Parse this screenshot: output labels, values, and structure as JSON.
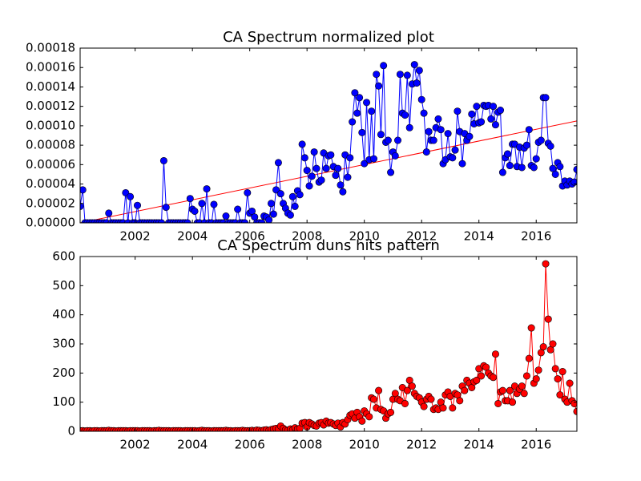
{
  "chart_data": [
    {
      "type": "line",
      "title": "CA Spectrum normalized plot",
      "x": [
        2000.08,
        2000.17,
        2000.25,
        2000.33,
        2000.42,
        2000.5,
        2000.58,
        2000.67,
        2000.75,
        2000.83,
        2000.92,
        2001,
        2001.08,
        2001.17,
        2001.25,
        2001.33,
        2001.42,
        2001.5,
        2001.58,
        2001.67,
        2001.75,
        2001.83,
        2001.92,
        2002,
        2002.08,
        2002.17,
        2002.25,
        2002.33,
        2002.42,
        2002.5,
        2002.58,
        2002.67,
        2002.75,
        2002.83,
        2002.92,
        2003,
        2003.08,
        2003.17,
        2003.25,
        2003.33,
        2003.42,
        2003.5,
        2003.58,
        2003.67,
        2003.75,
        2003.83,
        2003.92,
        2004,
        2004.08,
        2004.17,
        2004.25,
        2004.33,
        2004.42,
        2004.5,
        2004.58,
        2004.67,
        2004.75,
        2004.83,
        2004.92,
        2005,
        2005.08,
        2005.17,
        2005.25,
        2005.33,
        2005.42,
        2005.5,
        2005.58,
        2005.67,
        2005.75,
        2005.83,
        2005.92,
        2006,
        2006.08,
        2006.17,
        2006.25,
        2006.33,
        2006.42,
        2006.5,
        2006.58,
        2006.67,
        2006.75,
        2006.83,
        2006.92,
        2007,
        2007.08,
        2007.17,
        2007.25,
        2007.33,
        2007.42,
        2007.5,
        2007.58,
        2007.67,
        2007.75,
        2007.83,
        2007.92,
        2008,
        2008.08,
        2008.17,
        2008.25,
        2008.33,
        2008.42,
        2008.5,
        2008.58,
        2008.67,
        2008.75,
        2008.83,
        2008.92,
        2009,
        2009.08,
        2009.17,
        2009.25,
        2009.33,
        2009.42,
        2009.5,
        2009.58,
        2009.67,
        2009.75,
        2009.83,
        2009.92,
        2010,
        2010.08,
        2010.17,
        2010.25,
        2010.33,
        2010.42,
        2010.5,
        2010.58,
        2010.67,
        2010.75,
        2010.83,
        2010.92,
        2011,
        2011.08,
        2011.17,
        2011.25,
        2011.33,
        2011.42,
        2011.5,
        2011.58,
        2011.67,
        2011.75,
        2011.83,
        2011.92,
        2012,
        2012.08,
        2012.17,
        2012.25,
        2012.33,
        2012.42,
        2012.5,
        2012.58,
        2012.67,
        2012.75,
        2012.83,
        2012.92,
        2013,
        2013.08,
        2013.17,
        2013.25,
        2013.33,
        2013.42,
        2013.5,
        2013.58,
        2013.67,
        2013.75,
        2013.83,
        2013.92,
        2014,
        2014.08,
        2014.17,
        2014.25,
        2014.33,
        2014.42,
        2014.5,
        2014.58,
        2014.67,
        2014.75,
        2014.83,
        2014.92,
        2015,
        2015.08,
        2015.17,
        2015.25,
        2015.33,
        2015.42,
        2015.5,
        2015.58,
        2015.67,
        2015.75,
        2015.83,
        2015.92,
        2016,
        2016.08,
        2016.17,
        2016.25,
        2016.33,
        2016.42,
        2016.5,
        2016.58,
        2016.67,
        2016.75,
        2016.83,
        2016.92,
        2017,
        2017.08,
        2017.17,
        2017.25,
        2017.33,
        2017.42
      ],
      "series": [
        {
          "color": "#0000ff",
          "values": [
            1.7e-05,
            3.4e-05,
            0,
            0,
            0,
            0,
            0,
            0,
            0,
            0,
            0,
            0,
            1e-05,
            0,
            0,
            0,
            0,
            0,
            0,
            3.1e-05,
            0,
            2.7e-05,
            0,
            0,
            1.8e-05,
            0,
            0,
            0,
            0,
            0,
            0,
            0,
            0,
            0,
            0,
            6.4e-05,
            1.6e-05,
            0,
            0,
            0,
            0,
            0,
            0,
            0,
            0,
            0,
            2.5e-05,
            1.4e-05,
            1.2e-05,
            0,
            0,
            2e-05,
            0,
            3.5e-05,
            0,
            0,
            1.9e-05,
            0,
            0,
            0,
            0,
            7e-06,
            0,
            0,
            0,
            0,
            1.4e-05,
            0,
            0,
            0,
            3.1e-05,
            1e-05,
            1.2e-05,
            6e-06,
            0,
            0,
            0,
            7e-06,
            6e-06,
            3e-06,
            2e-05,
            9e-06,
            3.4e-05,
            6.2e-05,
            3e-05,
            2e-05,
            1.5e-05,
            1e-05,
            8e-06,
            2.7e-05,
            1.7e-05,
            3.3e-05,
            2.9e-05,
            8.1e-05,
            6.7e-05,
            5.4e-05,
            3.8e-05,
            4.8e-05,
            7.3e-05,
            5.6e-05,
            4.2e-05,
            4.4e-05,
            7.2e-05,
            5.6e-05,
            6.9e-05,
            7e-05,
            5.8e-05,
            4.9e-05,
            5.6e-05,
            3.9e-05,
            3.2e-05,
            7e-05,
            4.7e-05,
            6.7e-05,
            0.000104,
            0.000134,
            0.000113,
            0.000129,
            9.3e-05,
            6.1e-05,
            0.000124,
            6.5e-05,
            0.000115,
            6.6e-05,
            0.000153,
            0.000141,
            9.1e-05,
            0.000162,
            8.3e-05,
            8.5e-05,
            5.2e-05,
            7.3e-05,
            6.9e-05,
            8.5e-05,
            0.000153,
            0.000113,
            0.000111,
            0.000152,
            9.8e-05,
            0.000143,
            0.000163,
            0.000144,
            0.000157,
            0.000127,
            0.000113,
            7.3e-05,
            9.4e-05,
            8.5e-05,
            8.5e-05,
            9.8e-05,
            0.000107,
            9.6e-05,
            6.1e-05,
            6.5e-05,
            9.2e-05,
            6.8e-05,
            6.7e-05,
            7.5e-05,
            0.000115,
            9.4e-05,
            6.1e-05,
            9.2e-05,
            8.5e-05,
            8.9e-05,
            0.000112,
            0.000102,
            0.00012,
            0.000103,
            0.000104,
            0.000121,
            0.00012,
            0.000121,
            0.000107,
            0.00012,
            0.000101,
            0.000114,
            0.000116,
            5.2e-05,
            6.7e-05,
            7.1e-05,
            5.9e-05,
            8.1e-05,
            8.1e-05,
            5.8e-05,
            7.8e-05,
            5.7e-05,
            7.7e-05,
            8e-05,
            9.6e-05,
            5.9e-05,
            5.7e-05,
            6.6e-05,
            8.3e-05,
            8.5e-05,
            0.000129,
            0.000129,
            8.2e-05,
            7.9e-05,
            5.6e-05,
            5e-05,
            6.2e-05,
            5.8e-05,
            3.8e-05,
            4.3e-05,
            3.9e-05,
            4.3e-05,
            4e-05,
            4.2e-05,
            5.5e-05
          ]
        }
      ],
      "trend": {
        "x": [
          2000.08,
          2017.42
        ],
        "values": [
          0,
          0.000105
        ],
        "color": "#ff0000"
      },
      "xlim": [
        2000.08,
        2017.42
      ],
      "ylim": [
        0,
        0.00018
      ],
      "xticks": [
        2002,
        2004,
        2006,
        2008,
        2010,
        2012,
        2014,
        2016
      ],
      "yticks": [
        {
          "value": 0,
          "label": "0.00000"
        },
        {
          "value": 2e-05,
          "label": "0.00002"
        },
        {
          "value": 4e-05,
          "label": "0.00004"
        },
        {
          "value": 6e-05,
          "label": "0.00006"
        },
        {
          "value": 8e-05,
          "label": "0.00008"
        },
        {
          "value": 0.0001,
          "label": "0.00010"
        },
        {
          "value": 0.00012,
          "label": "0.00012"
        },
        {
          "value": 0.00014,
          "label": "0.00014"
        },
        {
          "value": 0.00016,
          "label": "0.00016"
        },
        {
          "value": 0.00018,
          "label": "0.00018"
        }
      ]
    },
    {
      "type": "line",
      "title": "CA Spectrum duns hits pattern",
      "x": [
        2000.08,
        2000.17,
        2000.25,
        2000.33,
        2000.42,
        2000.5,
        2000.58,
        2000.67,
        2000.75,
        2000.83,
        2000.92,
        2001,
        2001.08,
        2001.17,
        2001.25,
        2001.33,
        2001.42,
        2001.5,
        2001.58,
        2001.67,
        2001.75,
        2001.83,
        2001.92,
        2002,
        2002.08,
        2002.17,
        2002.25,
        2002.33,
        2002.42,
        2002.5,
        2002.58,
        2002.67,
        2002.75,
        2002.83,
        2002.92,
        2003,
        2003.08,
        2003.17,
        2003.25,
        2003.33,
        2003.42,
        2003.5,
        2003.58,
        2003.67,
        2003.75,
        2003.83,
        2003.92,
        2004,
        2004.08,
        2004.17,
        2004.25,
        2004.33,
        2004.42,
        2004.5,
        2004.58,
        2004.67,
        2004.75,
        2004.83,
        2004.92,
        2005,
        2005.08,
        2005.17,
        2005.25,
        2005.33,
        2005.42,
        2005.5,
        2005.58,
        2005.67,
        2005.75,
        2005.83,
        2005.92,
        2006,
        2006.08,
        2006.17,
        2006.25,
        2006.33,
        2006.42,
        2006.5,
        2006.58,
        2006.67,
        2006.75,
        2006.83,
        2006.92,
        2007,
        2007.08,
        2007.17,
        2007.25,
        2007.33,
        2007.42,
        2007.5,
        2007.58,
        2007.67,
        2007.75,
        2007.83,
        2007.92,
        2008,
        2008.08,
        2008.17,
        2008.25,
        2008.33,
        2008.42,
        2008.5,
        2008.58,
        2008.67,
        2008.75,
        2008.83,
        2008.92,
        2009,
        2009.08,
        2009.17,
        2009.25,
        2009.33,
        2009.42,
        2009.5,
        2009.58,
        2009.67,
        2009.75,
        2009.83,
        2009.92,
        2010,
        2010.08,
        2010.17,
        2010.25,
        2010.33,
        2010.42,
        2010.5,
        2010.58,
        2010.67,
        2010.75,
        2010.83,
        2010.92,
        2011,
        2011.08,
        2011.17,
        2011.25,
        2011.33,
        2011.42,
        2011.5,
        2011.58,
        2011.67,
        2011.75,
        2011.83,
        2011.92,
        2012,
        2012.08,
        2012.17,
        2012.25,
        2012.33,
        2012.42,
        2012.5,
        2012.58,
        2012.67,
        2012.75,
        2012.83,
        2012.92,
        2013,
        2013.08,
        2013.17,
        2013.25,
        2013.33,
        2013.42,
        2013.5,
        2013.58,
        2013.67,
        2013.75,
        2013.83,
        2013.92,
        2014,
        2014.08,
        2014.17,
        2014.25,
        2014.33,
        2014.42,
        2014.5,
        2014.58,
        2014.67,
        2014.75,
        2014.83,
        2014.92,
        2015,
        2015.08,
        2015.17,
        2015.25,
        2015.33,
        2015.42,
        2015.5,
        2015.58,
        2015.67,
        2015.75,
        2015.83,
        2015.92,
        2016,
        2016.08,
        2016.17,
        2016.25,
        2016.33,
        2016.42,
        2016.5,
        2016.58,
        2016.67,
        2016.75,
        2016.83,
        2016.92,
        2017,
        2017.08,
        2017.17,
        2017.25,
        2017.33,
        2017.42
      ],
      "series": [
        {
          "color": "#ff0000",
          "values": [
            2,
            2,
            1,
            2,
            2,
            1,
            2,
            2,
            1,
            2,
            2,
            2,
            3,
            2,
            2,
            1,
            2,
            2,
            2,
            2,
            1,
            2,
            2,
            2,
            2,
            1,
            2,
            2,
            2,
            2,
            1,
            2,
            2,
            3,
            2,
            2,
            2,
            2,
            1,
            2,
            2,
            2,
            2,
            1,
            2,
            2,
            2,
            2,
            2,
            1,
            2,
            3,
            2,
            2,
            2,
            1,
            2,
            2,
            2,
            2,
            2,
            3,
            2,
            2,
            1,
            2,
            2,
            2,
            3,
            2,
            2,
            2,
            3,
            2,
            4,
            3,
            2,
            4,
            5,
            3,
            6,
            8,
            10,
            7,
            18,
            10,
            5,
            3,
            8,
            5,
            12,
            8,
            10,
            28,
            30,
            15,
            30,
            25,
            20,
            18,
            28,
            30,
            22,
            35,
            28,
            30,
            25,
            20,
            28,
            15,
            30,
            25,
            40,
            55,
            60,
            45,
            65,
            50,
            35,
            70,
            60,
            50,
            115,
            110,
            80,
            140,
            75,
            70,
            45,
            60,
            65,
            110,
            130,
            110,
            105,
            150,
            95,
            140,
            175,
            155,
            130,
            120,
            115,
            100,
            85,
            110,
            120,
            110,
            75,
            80,
            75,
            100,
            80,
            125,
            135,
            120,
            80,
            130,
            125,
            105,
            155,
            140,
            175,
            165,
            150,
            170,
            175,
            215,
            190,
            225,
            220,
            200,
            190,
            185,
            265,
            95,
            135,
            140,
            105,
            105,
            140,
            100,
            155,
            130,
            145,
            155,
            130,
            190,
            250,
            355,
            165,
            180,
            210,
            270,
            290,
            575,
            385,
            280,
            300,
            215,
            180,
            125,
            205,
            110,
            100,
            165,
            105,
            95,
            68
          ]
        }
      ],
      "xlim": [
        2000.08,
        2017.42
      ],
      "ylim": [
        0,
        600
      ],
      "xticks": [
        2002,
        2004,
        2006,
        2008,
        2010,
        2012,
        2014,
        2016
      ],
      "yticks": [
        0,
        100,
        200,
        300,
        400,
        500,
        600
      ]
    }
  ]
}
